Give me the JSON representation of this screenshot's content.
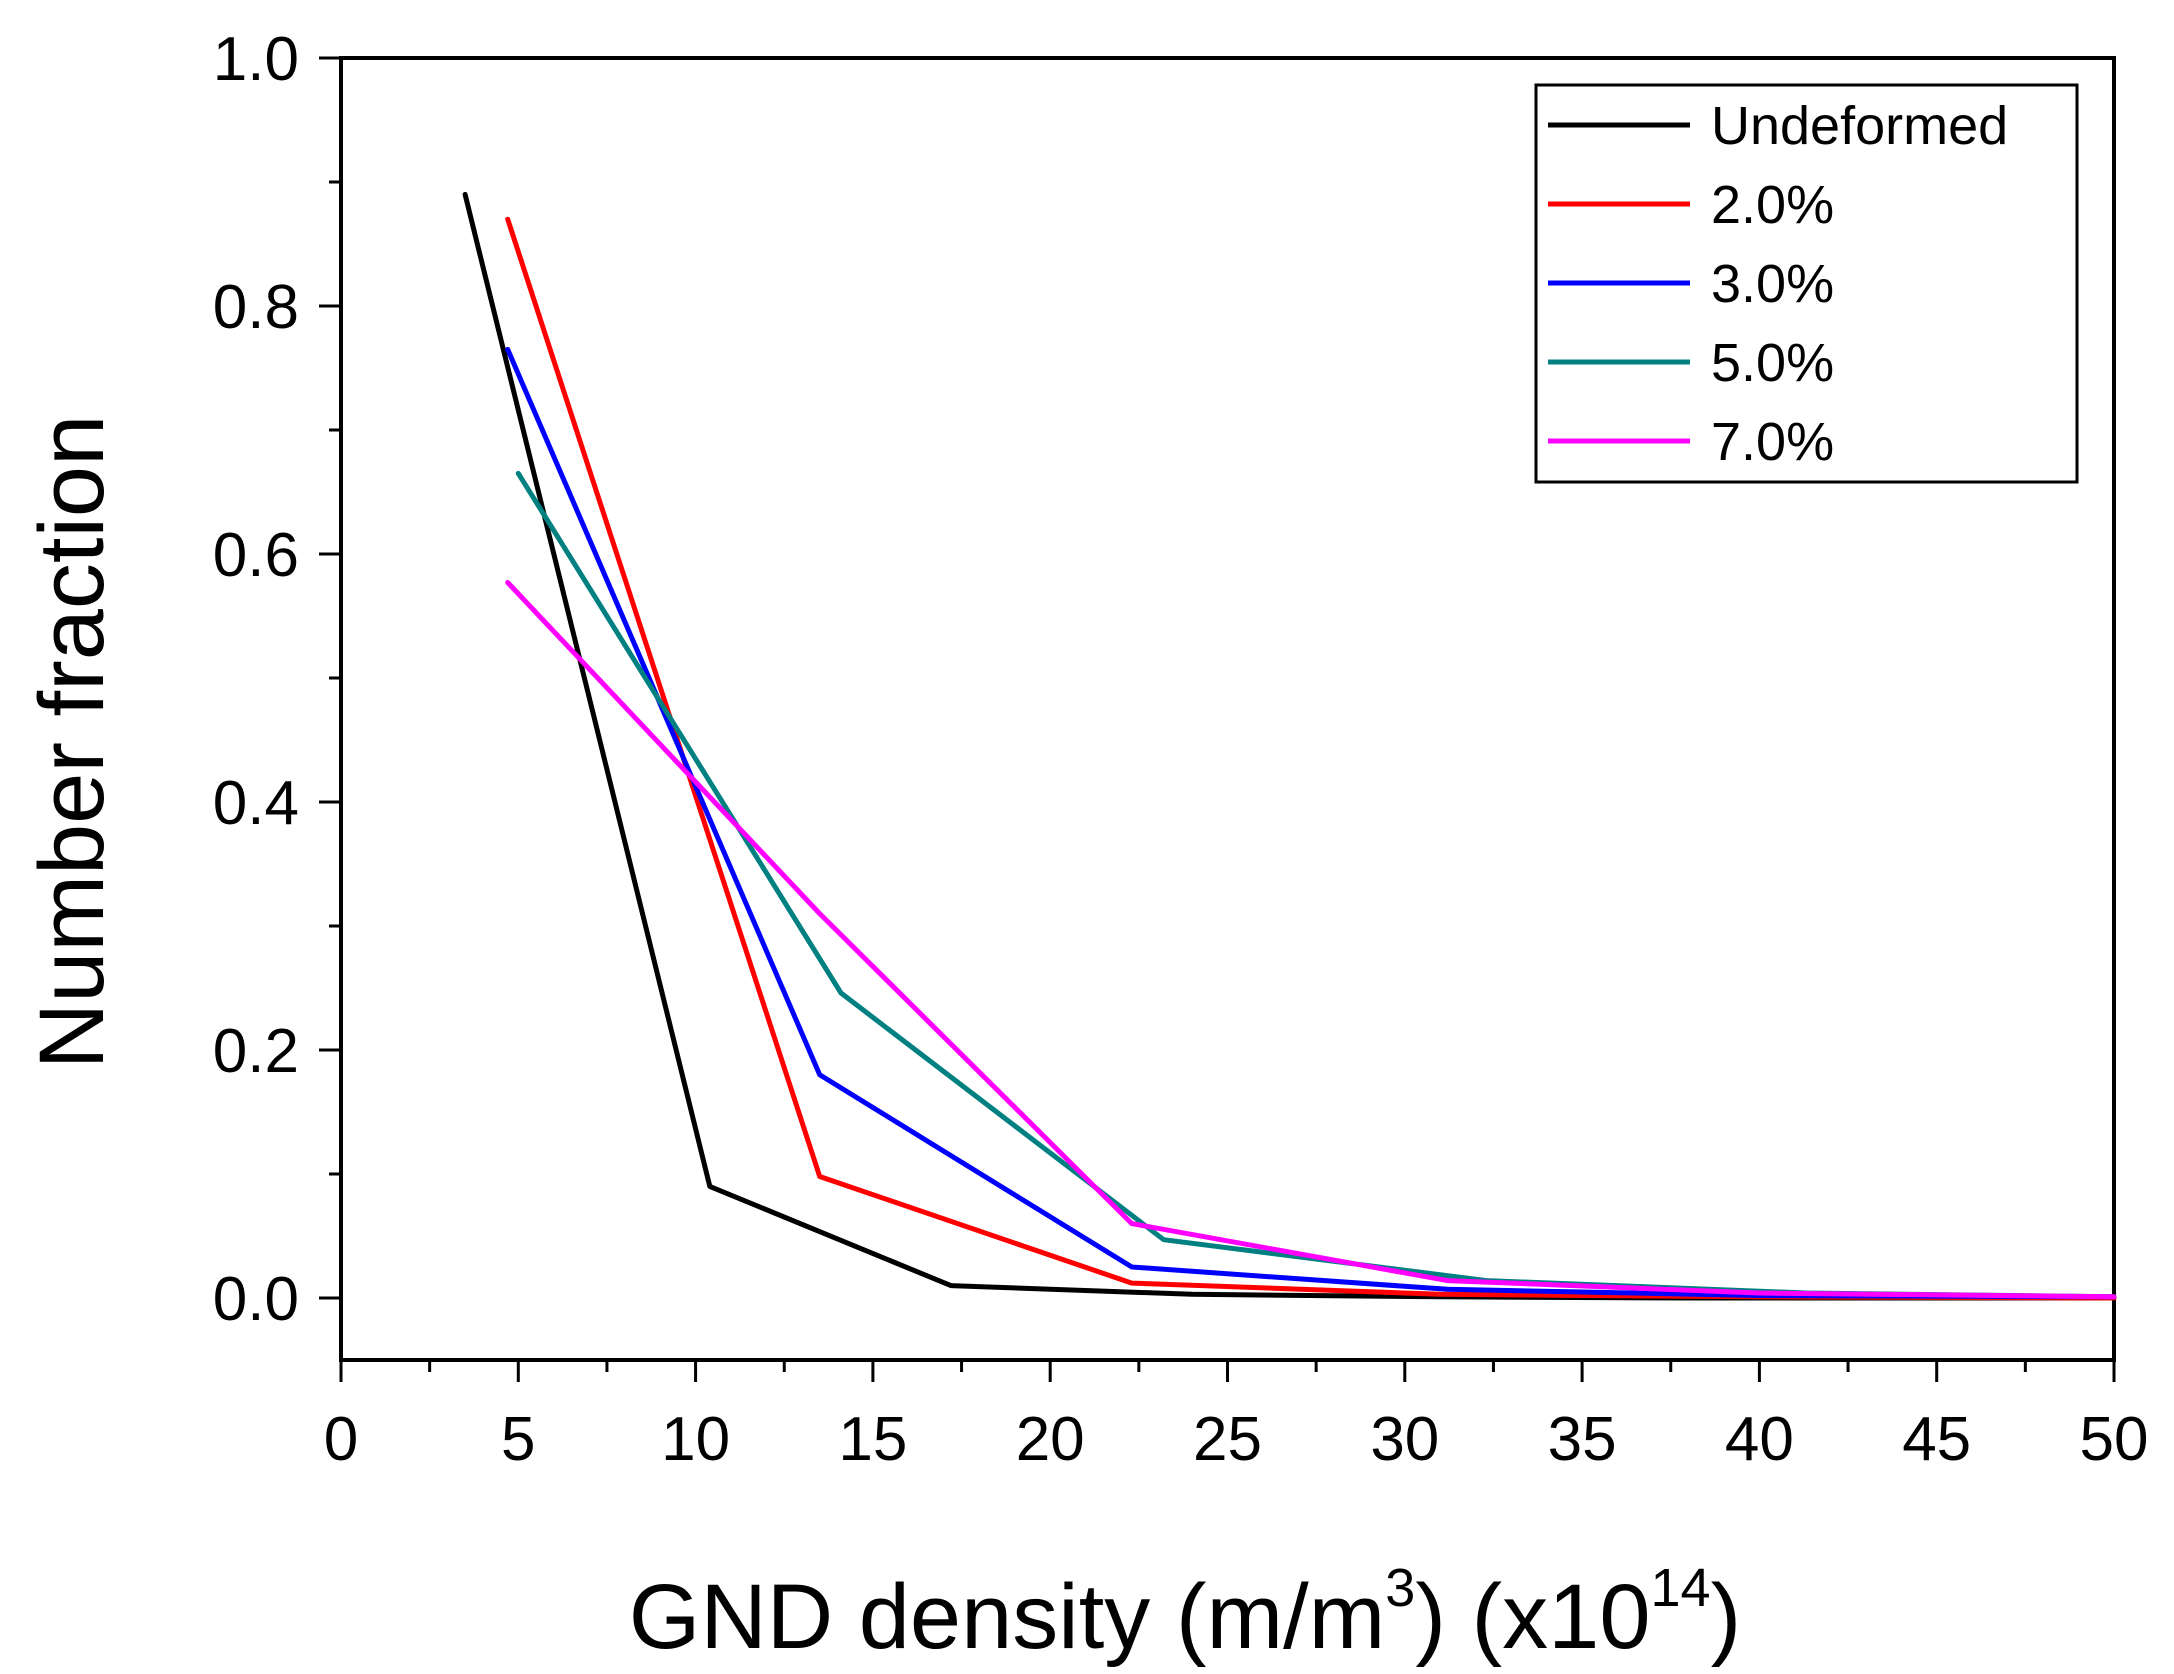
{
  "chart_data": {
    "type": "line",
    "title": "",
    "xlabel": {
      "main": "GND density (m/m",
      "unit_exponent": "3",
      "close": ") (x10",
      "scale_exponent": "14",
      "end": ")"
    },
    "ylabel": "Number fraction",
    "xlim": [
      0,
      50
    ],
    "ylim": [
      -0.05,
      1.0
    ],
    "x_ticks": [
      "0",
      "5",
      "10",
      "15",
      "20",
      "25",
      "30",
      "35",
      "40",
      "45",
      "50"
    ],
    "y_ticks": [
      "0.0",
      "0.2",
      "0.4",
      "0.6",
      "0.8",
      "1.0"
    ],
    "legend_position": "top-right",
    "grid": false,
    "series": [
      {
        "name": "Undeformed",
        "color": "#000000",
        "x": [
          3.5,
          10.4,
          17.2,
          24.0,
          31.0,
          38.0,
          45.0,
          50.0
        ],
        "y": [
          0.89,
          0.09,
          0.01,
          0.003,
          0.001,
          0.0,
          0.0,
          0.0
        ]
      },
      {
        "name": "2.0%",
        "color": "#ff0000",
        "x": [
          4.7,
          13.5,
          22.3,
          31.0,
          40.0,
          50.0
        ],
        "y": [
          0.87,
          0.098,
          0.012,
          0.003,
          0.001,
          0.0
        ]
      },
      {
        "name": "3.0%",
        "color": "#0000ff",
        "x": [
          4.7,
          13.5,
          22.3,
          31.2,
          40.0,
          50.0
        ],
        "y": [
          0.765,
          0.18,
          0.025,
          0.007,
          0.002,
          0.001
        ]
      },
      {
        "name": "5.0%",
        "color": "#008080",
        "x": [
          5.0,
          14.1,
          23.2,
          32.3,
          41.3,
          50.0
        ],
        "y": [
          0.665,
          0.246,
          0.047,
          0.014,
          0.004,
          0.001
        ]
      },
      {
        "name": "7.0%",
        "color": "#ff00ff",
        "x": [
          4.7,
          13.5,
          22.3,
          31.2,
          40.0,
          50.0
        ],
        "y": [
          0.577,
          0.31,
          0.06,
          0.014,
          0.004,
          0.001
        ]
      }
    ]
  }
}
